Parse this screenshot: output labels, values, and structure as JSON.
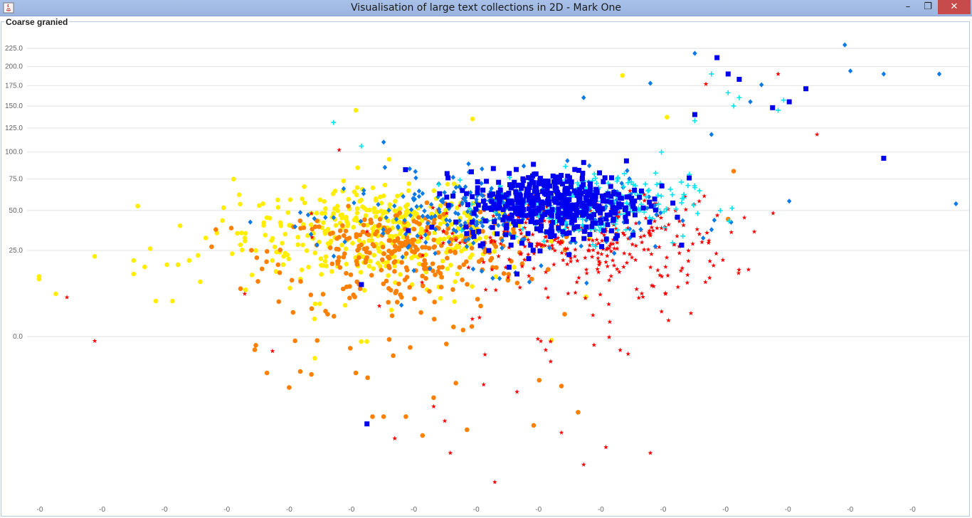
{
  "window": {
    "title": "Visualisation of large text collections in 2D - Mark One",
    "icon": "java-app-icon",
    "controls": {
      "minimize": "–",
      "maximize": "❐",
      "close": "✕"
    }
  },
  "chart_data": {
    "type": "scatter",
    "title": "Coarse granied",
    "xlabel": "",
    "ylabel": "",
    "grid": "horizontal",
    "y_ticks": [
      0.0,
      25.0,
      50.0,
      75.0,
      100.0,
      125.0,
      150.0,
      175.0,
      200.0,
      225.0
    ],
    "y_tick_labels": [
      "0.0",
      "25.0",
      "50.0",
      "75.0",
      "100.0",
      "125.0",
      "150.0",
      "175.0",
      "200.0",
      "225.0"
    ],
    "x_tick_labels": [
      "-0",
      "-0",
      "-0",
      "-0",
      "-0",
      "-0",
      "-0",
      "-0",
      "-0",
      "-0",
      "-0",
      "-0",
      "-0",
      "-0",
      "-0"
    ],
    "series": [
      {
        "color": "#ffee00",
        "marker": "circle",
        "cluster": {
          "cx": 0.63,
          "cy": 36,
          "sx": 0.13,
          "sy": 15,
          "n": 420
        },
        "points": [
          [
            0.0,
            13
          ],
          [
            0.0,
            12
          ],
          [
            0.03,
            7
          ],
          [
            0.1,
            22
          ],
          [
            0.17,
            20
          ],
          [
            0.17,
            14
          ],
          [
            0.2,
            26
          ],
          [
            0.19,
            17
          ],
          [
            0.21,
            5
          ],
          [
            0.23,
            18
          ],
          [
            0.25,
            18
          ],
          [
            0.27,
            20
          ],
          [
            0.29,
            11
          ],
          [
            0.3,
            32
          ],
          [
            0.32,
            35
          ],
          [
            0.33,
            43
          ],
          [
            0.35,
            75
          ],
          [
            0.36,
            62
          ],
          [
            0.37,
            32
          ],
          [
            0.39,
            25
          ],
          [
            0.42,
            20
          ],
          [
            0.57,
            145
          ],
          [
            0.63,
            93
          ],
          [
            0.78,
            135
          ],
          [
            1.05,
            188
          ],
          [
            1.13,
            137
          ],
          [
            0.44,
            22
          ],
          [
            0.47,
            12
          ],
          [
            0.41,
            45
          ],
          [
            0.24,
            5
          ]
        ]
      },
      {
        "color": "#ff8000",
        "marker": "circle",
        "cluster": {
          "cx": 0.66,
          "cy": 24,
          "sx": 0.12,
          "sy": 13,
          "n": 300
        },
        "points": [
          [
            0.43,
            18
          ],
          [
            0.45,
            -35
          ],
          [
            0.39,
            -6
          ],
          [
            0.41,
            -25
          ],
          [
            0.47,
            -24
          ],
          [
            0.49,
            -26
          ],
          [
            0.56,
            -8
          ],
          [
            0.57,
            -25
          ],
          [
            0.6,
            -55
          ],
          [
            0.62,
            -55
          ],
          [
            0.66,
            -55
          ],
          [
            0.69,
            -68
          ],
          [
            0.71,
            -42
          ],
          [
            0.75,
            -32
          ],
          [
            0.77,
            -64
          ],
          [
            0.89,
            -61
          ],
          [
            0.9,
            -30
          ],
          [
            0.94,
            -34
          ],
          [
            0.97,
            -52
          ],
          [
            1.25,
            82
          ],
          [
            1.24,
            44
          ],
          [
            0.63,
            -2
          ]
        ]
      },
      {
        "color": "#ff0000",
        "marker": "star",
        "cluster": {
          "cx": 0.98,
          "cy": 30,
          "sx": 0.13,
          "sy": 15,
          "n": 360
        },
        "points": [
          [
            0.05,
            6
          ],
          [
            0.1,
            -3
          ],
          [
            0.37,
            7
          ],
          [
            0.42,
            -10
          ],
          [
            0.49,
            48
          ],
          [
            0.54,
            102
          ],
          [
            0.64,
            -70
          ],
          [
            0.71,
            -48
          ],
          [
            0.73,
            -58
          ],
          [
            0.74,
            -80
          ],
          [
            0.8,
            -33
          ],
          [
            0.82,
            -100
          ],
          [
            0.86,
            -38
          ],
          [
            0.94,
            -66
          ],
          [
            0.98,
            -88
          ],
          [
            1.02,
            -76
          ],
          [
            1.06,
            -12
          ],
          [
            1.1,
            -80
          ],
          [
            1.2,
            177
          ],
          [
            1.33,
            190
          ],
          [
            1.4,
            118
          ]
        ]
      },
      {
        "color": "#0a7ae8",
        "marker": "diamond",
        "cluster": {
          "cx": 0.83,
          "cy": 48,
          "sx": 0.14,
          "sy": 15,
          "n": 300
        },
        "points": [
          [
            0.38,
            42
          ],
          [
            0.5,
            28
          ],
          [
            0.53,
            45
          ],
          [
            0.62,
            110
          ],
          [
            1.1,
            178
          ],
          [
            1.18,
            218
          ],
          [
            1.3,
            176
          ],
          [
            1.35,
            57
          ],
          [
            1.45,
            230
          ],
          [
            1.46,
            194
          ],
          [
            1.52,
            190
          ],
          [
            1.62,
            190
          ],
          [
            1.65,
            55
          ],
          [
            1.28,
            155
          ],
          [
            1.21,
            118
          ],
          [
            0.98,
            160
          ]
        ]
      },
      {
        "color": "#00e4ef",
        "marker": "plus",
        "cluster": {
          "cx": 0.99,
          "cy": 55,
          "sx": 0.09,
          "sy": 12,
          "n": 220
        },
        "points": [
          [
            0.53,
            131
          ],
          [
            0.58,
            106
          ],
          [
            1.21,
            190
          ],
          [
            1.24,
            166
          ],
          [
            1.25,
            150
          ],
          [
            1.26,
            160
          ],
          [
            1.33,
            145
          ],
          [
            1.34,
            157
          ],
          [
            1.18,
            133
          ],
          [
            1.12,
            100
          ]
        ]
      },
      {
        "color": "#0000ee",
        "marker": "square",
        "cluster": {
          "cx": 0.93,
          "cy": 56,
          "sx": 0.08,
          "sy": 13,
          "n": 460
        },
        "points": [
          [
            0.59,
            -60
          ],
          [
            1.22,
            212
          ],
          [
            1.24,
            190
          ],
          [
            1.26,
            183
          ],
          [
            1.32,
            148
          ],
          [
            1.35,
            155
          ],
          [
            1.38,
            171
          ],
          [
            1.52,
            94
          ],
          [
            1.18,
            140
          ],
          [
            1.17,
            76
          ],
          [
            0.75,
            42
          ],
          [
            0.86,
            14
          ],
          [
            0.98,
            90
          ],
          [
            0.58,
            10
          ]
        ]
      }
    ]
  }
}
